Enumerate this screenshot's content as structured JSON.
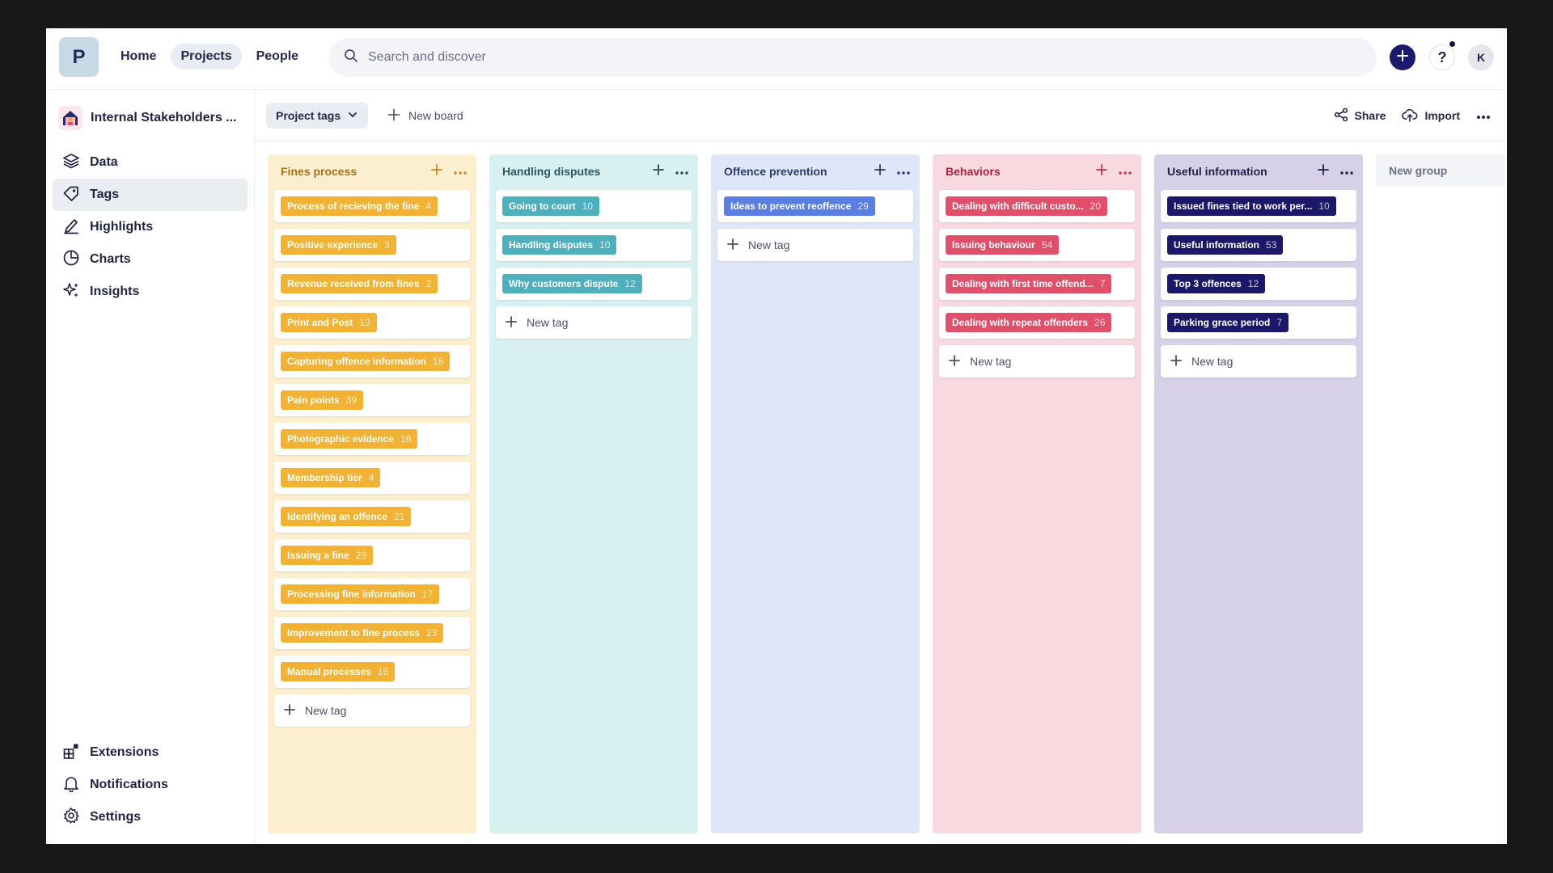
{
  "topbar": {
    "logo_letter": "P",
    "nav": [
      {
        "label": "Home",
        "active": false
      },
      {
        "label": "Projects",
        "active": true
      },
      {
        "label": "People",
        "active": false
      }
    ],
    "search_placeholder": "Search and discover",
    "help_label": "?",
    "avatar_initial": "K"
  },
  "sidebar": {
    "project_name": "Internal Stakeholders ...",
    "items": [
      {
        "label": "Data",
        "icon": "layers-icon",
        "active": false
      },
      {
        "label": "Tags",
        "icon": "tag-icon",
        "active": true
      },
      {
        "label": "Highlights",
        "icon": "highlight-pen-icon",
        "active": false
      },
      {
        "label": "Charts",
        "icon": "pie-chart-icon",
        "active": false
      },
      {
        "label": "Insights",
        "icon": "sparkles-icon",
        "active": false
      }
    ],
    "bottom_items": [
      {
        "label": "Extensions",
        "icon": "extensions-icon"
      },
      {
        "label": "Notifications",
        "icon": "bell-icon"
      },
      {
        "label": "Settings",
        "icon": "gear-icon"
      }
    ]
  },
  "toolbar": {
    "project_tags_label": "Project tags",
    "new_board_label": "New board",
    "share_label": "Share",
    "import_label": "Import"
  },
  "board": {
    "new_tag_label": "New tag",
    "new_group_label": "New group",
    "columns": [
      {
        "title": "Fines process",
        "bg": "#fcefd0",
        "title_color": "#a8701a",
        "action_color": "#c98a1e",
        "tag_color": "#f2b233",
        "tags": [
          {
            "label": "Process of recieving the fine",
            "count": "4"
          },
          {
            "label": "Positive experience",
            "count": "3"
          },
          {
            "label": "Revenue received from fines",
            "count": "2"
          },
          {
            "label": "Print and Post",
            "count": "13"
          },
          {
            "label": "Capturing offence information",
            "count": "16"
          },
          {
            "label": "Pain points",
            "count": "39"
          },
          {
            "label": "Photographic evidence",
            "count": "16"
          },
          {
            "label": "Membership tier",
            "count": "4"
          },
          {
            "label": "Identifying an offence",
            "count": "21"
          },
          {
            "label": "Issuing a fine",
            "count": "29"
          },
          {
            "label": "Processing fine information",
            "count": "17"
          },
          {
            "label": "Improvement to fine process",
            "count": "23"
          },
          {
            "label": "Manual processes",
            "count": "16"
          }
        ]
      },
      {
        "title": "Handling disputes",
        "bg": "#d9f0f1",
        "title_color": "#2d5560",
        "action_color": "#2d4a55",
        "tag_color": "#4fb0bd",
        "tags": [
          {
            "label": "Going to court",
            "count": "10"
          },
          {
            "label": "Handling disputes",
            "count": "10"
          },
          {
            "label": "Why customers dispute",
            "count": "12"
          }
        ]
      },
      {
        "title": "Offence prevention",
        "bg": "#dfe6f8",
        "title_color": "#2c3a66",
        "action_color": "#2c3a66",
        "tag_color": "#5b7fe0",
        "tags": [
          {
            "label": "Ideas to prevent reoffence",
            "count": "29"
          }
        ]
      },
      {
        "title": "Behaviors",
        "bg": "#f9d9e0",
        "title_color": "#a8243c",
        "action_color": "#c8324c",
        "tag_color": "#e0506a",
        "tags": [
          {
            "label": "Dealing with difficult custo...",
            "count": "20"
          },
          {
            "label": "Issuing behaviour",
            "count": "54"
          },
          {
            "label": "Dealing with first time offend...",
            "count": "7"
          },
          {
            "label": "Dealing with repeat offenders",
            "count": "26"
          }
        ]
      },
      {
        "title": "Useful information",
        "bg": "#d6d1e6",
        "title_color": "#1f1f4a",
        "action_color": "#1f1f4a",
        "tag_color": "#1c1768",
        "tags": [
          {
            "label": "Issued fines tied to work per...",
            "count": "10"
          },
          {
            "label": "Useful information",
            "count": "53"
          },
          {
            "label": "Top 3 offences",
            "count": "12"
          },
          {
            "label": "Parking grace period",
            "count": "7"
          }
        ]
      }
    ]
  }
}
